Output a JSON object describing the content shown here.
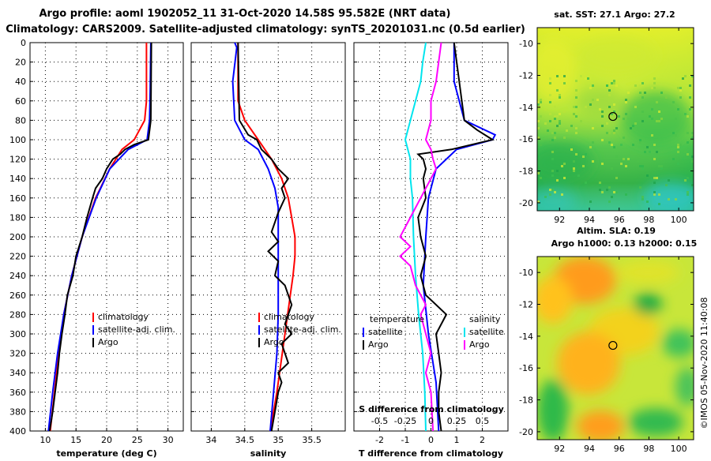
{
  "title": {
    "line1": "Argo profile: aoml 1902052_11 31-Oct-2020 14.58S 95.582E (NRT data)",
    "line2": "Climatology: CARS2009. Satellite-adjusted climatology: synTS_20201031.nc (0.5d earlier)"
  },
  "colors": {
    "climatology": "#ff0000",
    "satellite": "#0000ff",
    "argo": "#000000",
    "sat_salinity": "#00e5ee",
    "argo_salinity": "#ff00ff"
  },
  "depth_ticks": [
    "0",
    "20",
    "40",
    "60",
    "80",
    "100",
    "120",
    "140",
    "160",
    "180",
    "200",
    "220",
    "240",
    "260",
    "280",
    "300",
    "320",
    "340",
    "360",
    "380",
    "400"
  ],
  "chart_data": [
    {
      "type": "line",
      "name": "temperature",
      "xlabel": "temperature (deg C)",
      "ylabel": "depth",
      "xlim": [
        7.5,
        32.5
      ],
      "ylim": [
        0,
        400
      ],
      "xticks": [
        "10",
        "15",
        "20",
        "25",
        "30"
      ],
      "legend": [
        "climatology",
        "satellite-adj. clim.",
        "Argo"
      ],
      "series": [
        {
          "name": "climatology",
          "depth": [
            0,
            60,
            80,
            100,
            110,
            130,
            160,
            200,
            240,
            280,
            320,
            360,
            400
          ],
          "values": [
            26.5,
            26.5,
            26.2,
            24.5,
            22.5,
            20.5,
            18.2,
            16,
            14.3,
            13,
            12.2,
            11.5,
            10.8
          ]
        },
        {
          "name": "satellite-adj. clim.",
          "depth": [
            0,
            50,
            80,
            100,
            110,
            130,
            160,
            200,
            240,
            280,
            320,
            360,
            400
          ],
          "values": [
            27.2,
            27.1,
            27,
            26.6,
            23.5,
            20.5,
            18.3,
            16,
            14.3,
            13,
            12,
            11.2,
            10.5
          ]
        },
        {
          "name": "Argo",
          "depth": [
            0,
            80,
            100,
            105,
            110,
            115,
            120,
            130,
            140,
            150,
            160,
            180,
            200,
            220,
            240,
            260,
            280,
            300,
            320,
            340,
            360,
            380,
            400
          ],
          "values": [
            27.3,
            27.2,
            26.8,
            24.5,
            23,
            22.2,
            21,
            20,
            19.3,
            18.2,
            17.7,
            16.8,
            16,
            15,
            14.5,
            13.6,
            13.2,
            12.7,
            12.3,
            12,
            11.6,
            11.2,
            10.7
          ]
        }
      ]
    },
    {
      "type": "line",
      "name": "salinity",
      "xlabel": "salinity",
      "xlim": [
        33.7,
        36.0
      ],
      "ylim": [
        0,
        400
      ],
      "xticks": [
        "34",
        "34.5",
        "35",
        "35.5"
      ],
      "legend": [
        "climatology",
        "satellite-adj. clim.",
        "Argo"
      ],
      "series": [
        {
          "name": "climatology",
          "depth": [
            0,
            60,
            80,
            100,
            120,
            140,
            160,
            180,
            200,
            220,
            240,
            260,
            280,
            300,
            320,
            340,
            360,
            380,
            400
          ],
          "values": [
            34.4,
            34.4,
            34.5,
            34.7,
            34.9,
            35.05,
            35.15,
            35.2,
            35.25,
            35.25,
            35.22,
            35.18,
            35.14,
            35.1,
            35.06,
            35.02,
            34.98,
            34.93,
            34.88
          ]
        },
        {
          "name": "satellite-adj. clim.",
          "depth": [
            0,
            5,
            40,
            80,
            100,
            110,
            130,
            150,
            170,
            200,
            240,
            280,
            320,
            360,
            400
          ],
          "values": [
            34.35,
            34.38,
            34.32,
            34.35,
            34.5,
            34.7,
            34.85,
            34.95,
            35.0,
            35.0,
            35.0,
            35.0,
            34.98,
            34.93,
            34.88
          ]
        },
        {
          "name": "Argo",
          "depth": [
            0,
            80,
            95,
            100,
            110,
            120,
            130,
            140,
            150,
            160,
            175,
            185,
            195,
            205,
            215,
            225,
            240,
            250,
            260,
            270,
            280,
            290,
            300,
            310,
            320,
            330,
            340,
            350,
            360,
            380,
            400
          ],
          "values": [
            34.4,
            34.42,
            34.55,
            34.68,
            34.75,
            34.9,
            35.0,
            35.15,
            35.05,
            35.1,
            35.0,
            34.95,
            34.9,
            35.0,
            34.85,
            35.0,
            34.95,
            35.1,
            35.15,
            35.2,
            35.15,
            35.1,
            35.2,
            35.05,
            35.1,
            35.15,
            35.0,
            35.05,
            35.0,
            34.95,
            34.9
          ]
        }
      ]
    },
    {
      "type": "line",
      "name": "difference from climatology",
      "xlabel": "T difference from climatology",
      "xlabel_top": "S difference from climatology",
      "xlim": [
        -3,
        3
      ],
      "ylim": [
        0,
        400
      ],
      "xticks": [
        "-2",
        "-1",
        "0",
        "1",
        "2"
      ],
      "xticks_top": [
        "-0.5",
        "-0.25",
        "0",
        "0.25",
        "0.5"
      ],
      "legend_left_title": "temperature",
      "legend_right_title": "salinity",
      "legend": [
        "satellite",
        "Argo",
        "satellite",
        "Argo"
      ],
      "series": [
        {
          "name": "T satellite",
          "depth": [
            0,
            40,
            80,
            95,
            100,
            110,
            130,
            160,
            200,
            250,
            300,
            350,
            400
          ],
          "values": [
            0.9,
            0.9,
            1.3,
            2.5,
            2.4,
            1.0,
            0.2,
            -0.1,
            -0.2,
            -0.3,
            -0.1,
            0.2,
            0.3
          ]
        },
        {
          "name": "T Argo",
          "depth": [
            0,
            80,
            90,
            100,
            110,
            115,
            120,
            130,
            140,
            160,
            180,
            200,
            220,
            240,
            260,
            280,
            300,
            320,
            340,
            360,
            380,
            400
          ],
          "values": [
            0.9,
            1.3,
            1.8,
            2.4,
            0.8,
            -0.5,
            -0.3,
            -0.2,
            -0.3,
            -0.2,
            -0.5,
            -0.4,
            -0.2,
            -0.4,
            -0.2,
            0.6,
            0.2,
            0.3,
            0.4,
            0.3,
            0.3,
            0.4
          ]
        },
        {
          "name": "S satellite",
          "depth": [
            0,
            20,
            40,
            60,
            80,
            100,
            120,
            140,
            160,
            200,
            240,
            280,
            300,
            320,
            360,
            400
          ],
          "values": [
            -0.05,
            -0.08,
            -0.1,
            -0.15,
            -0.2,
            -0.25,
            -0.2,
            -0.2,
            -0.18,
            -0.17,
            -0.15,
            -0.12,
            -0.1,
            -0.08,
            -0.06,
            -0.05
          ]
        },
        {
          "name": "S Argo",
          "depth": [
            0,
            40,
            60,
            80,
            100,
            110,
            120,
            130,
            140,
            160,
            180,
            200,
            210,
            220,
            230,
            250,
            270,
            280,
            300,
            320,
            340,
            360,
            400
          ],
          "values": [
            0.1,
            0.05,
            0.0,
            0.0,
            -0.05,
            0.0,
            0.02,
            0.05,
            0.0,
            -0.1,
            -0.2,
            -0.3,
            -0.2,
            -0.3,
            -0.2,
            -0.15,
            -0.05,
            -0.1,
            -0.05,
            0.0,
            -0.05,
            0.0,
            0.02
          ]
        }
      ]
    },
    {
      "type": "heatmap",
      "name": "sat. SST map",
      "title": "sat. SST: 27.1 Argo: 27.2",
      "xticks": [
        "92",
        "94",
        "96",
        "98",
        "100"
      ],
      "yticks": [
        "-10",
        "-12",
        "-14",
        "-16",
        "-18",
        "-20"
      ],
      "xlim": [
        90.5,
        101
      ],
      "ylim": [
        -20.5,
        -9
      ],
      "argo_lon": 95.582,
      "argo_lat": -14.58
    },
    {
      "type": "heatmap",
      "name": "Altim. SLA map",
      "title": "Altim. SLA: 0.19",
      "subtitle": "Argo h1000: 0.13 h2000: 0.15",
      "xticks": [
        "92",
        "94",
        "96",
        "98",
        "100"
      ],
      "yticks": [
        "-10",
        "-12",
        "-14",
        "-16",
        "-18",
        "-20"
      ],
      "xlim": [
        90.5,
        101
      ],
      "ylim": [
        -20.5,
        -9
      ],
      "argo_lon": 95.582,
      "argo_lat": -14.58
    }
  ],
  "credit": "©IMOS 05-Nov-2020 11:40:08"
}
